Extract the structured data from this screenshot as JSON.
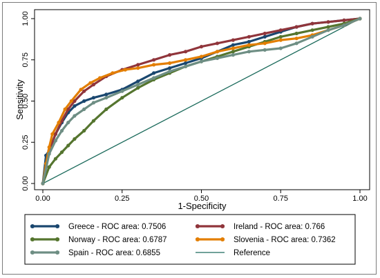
{
  "chart_data": {
    "type": "line",
    "xlabel": "1-Specificity",
    "ylabel": "Sensitivity",
    "xlim": [
      0,
      1
    ],
    "ylim": [
      0,
      1
    ],
    "xticks": [
      "0.00",
      "0.25",
      "0.50",
      "0.75",
      "1.00"
    ],
    "yticks": [
      "0.00",
      "0.25",
      "0.50",
      "0.75",
      "1.00"
    ],
    "grid": false,
    "legend_position": "bottom",
    "series": [
      {
        "name": "Greece - ROC area: 0.7506",
        "color": "#1a476f",
        "x": [
          0,
          0.01,
          0.02,
          0.04,
          0.06,
          0.08,
          0.1,
          0.13,
          0.16,
          0.2,
          0.25,
          0.3,
          0.35,
          0.4,
          0.45,
          0.5,
          0.55,
          0.6,
          0.65,
          0.7,
          0.75,
          0.8,
          0.85,
          0.9,
          0.95,
          1
        ],
        "y": [
          0,
          0.17,
          0.2,
          0.3,
          0.37,
          0.43,
          0.47,
          0.5,
          0.52,
          0.54,
          0.57,
          0.62,
          0.67,
          0.7,
          0.73,
          0.76,
          0.8,
          0.84,
          0.86,
          0.89,
          0.92,
          0.95,
          0.97,
          0.98,
          0.99,
          1
        ]
      },
      {
        "name": "Ireland - ROC area: 0.766",
        "color": "#90353b",
        "x": [
          0,
          0.01,
          0.02,
          0.04,
          0.06,
          0.08,
          0.1,
          0.13,
          0.16,
          0.2,
          0.25,
          0.3,
          0.35,
          0.4,
          0.45,
          0.5,
          0.55,
          0.6,
          0.65,
          0.7,
          0.75,
          0.8,
          0.85,
          0.9,
          0.95,
          1
        ],
        "y": [
          0,
          0.1,
          0.2,
          0.3,
          0.38,
          0.45,
          0.5,
          0.56,
          0.6,
          0.65,
          0.69,
          0.72,
          0.75,
          0.78,
          0.8,
          0.83,
          0.85,
          0.87,
          0.89,
          0.91,
          0.93,
          0.95,
          0.97,
          0.98,
          0.99,
          1
        ]
      },
      {
        "name": "Norway - ROC area: 0.6787",
        "color": "#55752f",
        "x": [
          0,
          0.02,
          0.04,
          0.06,
          0.08,
          0.1,
          0.13,
          0.16,
          0.2,
          0.25,
          0.3,
          0.35,
          0.4,
          0.45,
          0.5,
          0.55,
          0.6,
          0.65,
          0.7,
          0.75,
          0.8,
          0.85,
          0.9,
          0.95,
          1
        ],
        "y": [
          0,
          0.1,
          0.15,
          0.19,
          0.23,
          0.27,
          0.32,
          0.38,
          0.45,
          0.52,
          0.58,
          0.63,
          0.67,
          0.71,
          0.74,
          0.77,
          0.8,
          0.83,
          0.86,
          0.89,
          0.91,
          0.93,
          0.95,
          0.97,
          1
        ]
      },
      {
        "name": "Slovenia - ROC area: 0.7362",
        "color": "#e37e00",
        "x": [
          0,
          0.01,
          0.02,
          0.03,
          0.05,
          0.07,
          0.09,
          0.12,
          0.15,
          0.18,
          0.22,
          0.26,
          0.3,
          0.35,
          0.4,
          0.45,
          0.5,
          0.55,
          0.6,
          0.65,
          0.7,
          0.75,
          0.8,
          0.85,
          0.9,
          0.95,
          1
        ],
        "y": [
          0,
          0.12,
          0.22,
          0.3,
          0.37,
          0.45,
          0.5,
          0.57,
          0.61,
          0.64,
          0.67,
          0.69,
          0.7,
          0.72,
          0.73,
          0.75,
          0.77,
          0.8,
          0.82,
          0.84,
          0.85,
          0.87,
          0.88,
          0.9,
          0.93,
          0.96,
          1
        ]
      },
      {
        "name": "Spain - ROC area: 0.6855",
        "color": "#6e8e84",
        "x": [
          0,
          0.02,
          0.04,
          0.06,
          0.08,
          0.1,
          0.13,
          0.16,
          0.2,
          0.25,
          0.3,
          0.35,
          0.4,
          0.45,
          0.5,
          0.55,
          0.6,
          0.65,
          0.7,
          0.75,
          0.8,
          0.85,
          0.9,
          0.95,
          1
        ],
        "y": [
          0,
          0.18,
          0.26,
          0.32,
          0.37,
          0.41,
          0.45,
          0.49,
          0.52,
          0.56,
          0.6,
          0.64,
          0.68,
          0.71,
          0.74,
          0.76,
          0.78,
          0.8,
          0.81,
          0.82,
          0.85,
          0.89,
          0.93,
          0.96,
          1
        ]
      },
      {
        "name": "Reference",
        "color": "#1c6b5c",
        "x": [
          0,
          1
        ],
        "y": [
          0,
          1
        ]
      }
    ]
  }
}
